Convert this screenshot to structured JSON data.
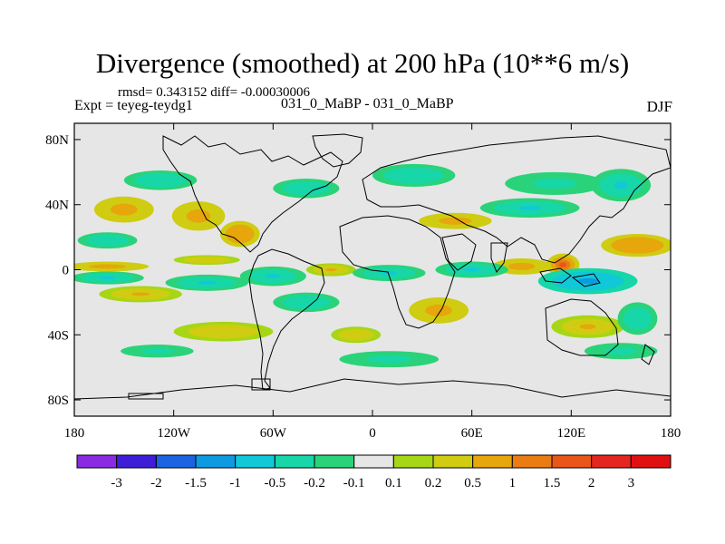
{
  "chart_data": {
    "type": "heatmap",
    "title": "Divergence (smoothed) at 200 hPa (10**6 m/s)",
    "stats_label": "rmsd= 0.343152 diff= -0.00030006",
    "experiment_label": "Expt = teyeg-teydg1",
    "range_label": "031_0_MaBP - 031_0_MaBP",
    "season": "DJF",
    "xlabel": "",
    "ylabel": "",
    "xlim": [
      -180,
      180
    ],
    "ylim": [
      -90,
      90
    ],
    "x_ticks": [
      {
        "value": -180,
        "label": "180"
      },
      {
        "value": -120,
        "label": "120W"
      },
      {
        "value": -60,
        "label": "60W"
      },
      {
        "value": 0,
        "label": "0"
      },
      {
        "value": 60,
        "label": "60E"
      },
      {
        "value": 120,
        "label": "120E"
      },
      {
        "value": 180,
        "label": "180"
      }
    ],
    "y_ticks": [
      {
        "value": 80,
        "label": "80N"
      },
      {
        "value": 40,
        "label": "40N"
      },
      {
        "value": 0,
        "label": "0"
      },
      {
        "value": -40,
        "label": "40S"
      },
      {
        "value": -80,
        "label": "80S"
      }
    ],
    "colorbar": {
      "levels": [
        "-3",
        "-2",
        "-1.5",
        "-1",
        "-0.5",
        "-0.2",
        "-0.1",
        "0.1",
        "0.2",
        "0.5",
        "1",
        "1.5",
        "2",
        "3"
      ],
      "colors": [
        "#8a2be2",
        "#3d1fd8",
        "#1b63e0",
        "#0d9ae0",
        "#10c8d8",
        "#17d6a8",
        "#2ad37a",
        "#e6e6e6",
        "#a6d615",
        "#cfcc11",
        "#e6a60c",
        "#ea7d12",
        "#ea5519",
        "#e5261e",
        "#e01010"
      ]
    },
    "anomaly_blobs": [
      {
        "lon": -150,
        "lat": 37,
        "rlon": 18,
        "rlat": 8,
        "value": 0.8
      },
      {
        "lon": -105,
        "lat": 33,
        "rlon": 16,
        "rlat": 9,
        "value": 0.9
      },
      {
        "lon": -80,
        "lat": 22,
        "rlon": 12,
        "rlat": 8,
        "value": 1.0
      },
      {
        "lon": -128,
        "lat": 55,
        "rlon": 22,
        "rlat": 6,
        "value": -0.4
      },
      {
        "lon": -160,
        "lat": 18,
        "rlon": 18,
        "rlat": 5,
        "value": -0.4
      },
      {
        "lon": -40,
        "lat": 50,
        "rlon": 20,
        "rlat": 6,
        "value": -0.4
      },
      {
        "lon": 25,
        "lat": 58,
        "rlon": 25,
        "rlat": 7,
        "value": -0.4
      },
      {
        "lon": 110,
        "lat": 53,
        "rlon": 30,
        "rlat": 7,
        "value": -0.3
      },
      {
        "lon": 150,
        "lat": 52,
        "rlon": 18,
        "rlat": 10,
        "value": -0.5
      },
      {
        "lon": 95,
        "lat": 38,
        "rlon": 30,
        "rlat": 6,
        "value": -0.5
      },
      {
        "lon": 50,
        "lat": 30,
        "rlon": 22,
        "rlat": 5,
        "value": 0.7
      },
      {
        "lon": 160,
        "lat": 15,
        "rlon": 22,
        "rlat": 7,
        "value": 1.0
      },
      {
        "lon": 115,
        "lat": 3,
        "rlon": 10,
        "rlat": 7,
        "value": 1.6
      },
      {
        "lon": 90,
        "lat": 2,
        "rlon": 18,
        "rlat": 5,
        "value": 0.8
      },
      {
        "lon": -160,
        "lat": 2,
        "rlon": 25,
        "rlat": 3,
        "value": 0.7
      },
      {
        "lon": -100,
        "lat": 6,
        "rlon": 20,
        "rlat": 3,
        "value": 0.5
      },
      {
        "lon": -25,
        "lat": 0,
        "rlon": 15,
        "rlat": 4,
        "value": 0.6
      },
      {
        "lon": -160,
        "lat": -5,
        "rlon": 22,
        "rlat": 4,
        "value": -0.5
      },
      {
        "lon": -100,
        "lat": -8,
        "rlon": 25,
        "rlat": 5,
        "value": -0.6
      },
      {
        "lon": -60,
        "lat": -4,
        "rlon": 20,
        "rlat": 6,
        "value": -0.6
      },
      {
        "lon": 10,
        "lat": -2,
        "rlon": 22,
        "rlat": 5,
        "value": -0.5
      },
      {
        "lon": 60,
        "lat": 0,
        "rlon": 22,
        "rlat": 5,
        "value": -0.6
      },
      {
        "lon": 130,
        "lat": -7,
        "rlon": 30,
        "rlat": 8,
        "value": -1.2
      },
      {
        "lon": -140,
        "lat": -15,
        "rlon": 25,
        "rlat": 5,
        "value": 0.6
      },
      {
        "lon": -40,
        "lat": -20,
        "rlon": 20,
        "rlat": 6,
        "value": -0.4
      },
      {
        "lon": 40,
        "lat": -25,
        "rlon": 18,
        "rlat": 8,
        "value": 0.9
      },
      {
        "lon": -90,
        "lat": -38,
        "rlon": 30,
        "rlat": 6,
        "value": 0.5
      },
      {
        "lon": -10,
        "lat": -40,
        "rlon": 15,
        "rlat": 5,
        "value": 0.5
      },
      {
        "lon": 130,
        "lat": -35,
        "rlon": 22,
        "rlat": 7,
        "value": 0.6
      },
      {
        "lon": 160,
        "lat": -30,
        "rlon": 12,
        "rlat": 10,
        "value": -0.4
      },
      {
        "lon": 10,
        "lat": -55,
        "rlon": 30,
        "rlat": 5,
        "value": -0.3
      },
      {
        "lon": 150,
        "lat": -50,
        "rlon": 22,
        "rlat": 5,
        "value": -0.3
      },
      {
        "lon": -130,
        "lat": -50,
        "rlon": 22,
        "rlat": 4,
        "value": -0.3
      }
    ]
  }
}
